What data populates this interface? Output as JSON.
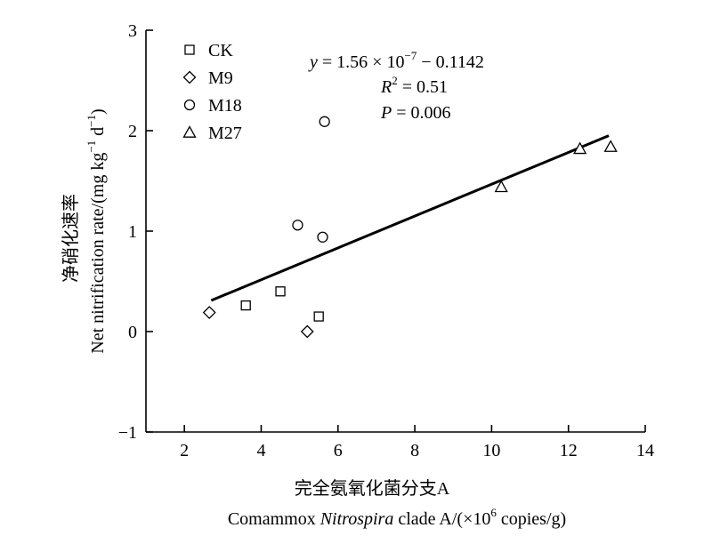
{
  "chart_data": {
    "type": "scatter",
    "title": "",
    "xlabel": {
      "cn": "完全氨氧化菌分支A",
      "en_prefix": "Comammox ",
      "en_italic": "Nitrospira",
      "en_middle": " clade A/(×10",
      "en_sup": "6",
      "en_suffix": " copies/g)"
    },
    "ylabel": {
      "cn": "净硝化速率",
      "en_prefix": "Net nitrification rate/(mg kg",
      "en_sup1": "−1",
      "en_middle": " d",
      "en_sup2": "−1",
      "en_suffix": ")"
    },
    "xlim": [
      1,
      14
    ],
    "ylim": [
      -1,
      3
    ],
    "xticks": [
      2,
      4,
      6,
      8,
      10,
      12,
      14
    ],
    "yticks": [
      -1,
      0,
      1,
      2,
      3
    ],
    "xtick_labels": [
      "2",
      "4",
      "6",
      "8",
      "10",
      "12",
      "14"
    ],
    "ytick_labels": [
      "−1",
      "0",
      "1",
      "2",
      "3"
    ],
    "grid": false,
    "legend_position": "top-left",
    "series": [
      {
        "name": "CK",
        "marker": "square",
        "x": [
          3.6,
          4.5,
          5.5
        ],
        "y": [
          0.26,
          0.4,
          0.15
        ]
      },
      {
        "name": "M9",
        "marker": "diamond",
        "x": [
          2.65,
          5.2
        ],
        "y": [
          0.19,
          0.0
        ]
      },
      {
        "name": "M18",
        "marker": "circle",
        "x": [
          5.65,
          4.95,
          5.6
        ],
        "y": [
          2.09,
          1.06,
          0.94
        ]
      },
      {
        "name": "M27",
        "marker": "triangle",
        "x": [
          10.25,
          12.3,
          13.1
        ],
        "y": [
          1.44,
          1.82,
          1.84
        ]
      }
    ],
    "fit_line": {
      "x": [
        2.7,
        13.05
      ],
      "y": [
        0.31,
        1.95
      ]
    },
    "annotation": {
      "eq_y": "y",
      "eq_mid": " = 1.56 × 10",
      "eq_sup": "−7",
      "eq_end": " − 0.1142",
      "r_R": "R",
      "r_sup": "2",
      "r_end": " = 0.51",
      "p_P": "P",
      "p_end": " = 0.006"
    }
  }
}
